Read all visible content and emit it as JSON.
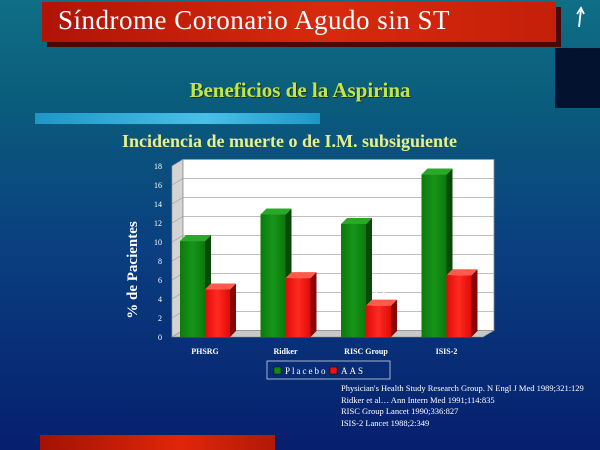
{
  "slide": {
    "title": "Síndrome Coronario Agudo sin ST",
    "title_arrow_icon": "arrow-up-icon",
    "subtitle": "Beneficios de la Aspirina"
  },
  "colors": {
    "title_bg": "#d72a0d",
    "subtitle": "#bfe64a",
    "chart_title": "#e8f08c",
    "placebo": "#138a13",
    "aas": "#ee1111"
  },
  "chart_data": {
    "type": "bar",
    "title": "Incidencia de muerte o de I.M. subsiguiente",
    "xlabel": "",
    "ylabel": "% de Pacientes",
    "ylim": [
      0,
      18
    ],
    "yticks": [
      0,
      2,
      4,
      6,
      8,
      10,
      12,
      14,
      16,
      18
    ],
    "grid": true,
    "legend_position": "bottom",
    "categories": [
      "PHSRG",
      "Ridker",
      "RISC Group",
      "ISIS-2"
    ],
    "series": [
      {
        "name": "Placebo",
        "values": [
          10.1,
          12.9,
          11.9,
          17.1
        ],
        "labels": [
          "10,1",
          "12,9",
          "11,9",
          "17,1"
        ]
      },
      {
        "name": "AAS",
        "values": [
          5,
          6.2,
          3.3,
          6.5
        ],
        "labels": [
          "5",
          "6,2",
          "3,3",
          "6,5"
        ]
      }
    ]
  },
  "references": [
    "Physician's Health Study Research Group. N Engl J Med 1989;321:129",
    "Ridker et al… Ann Intern Med 1991;114:835",
    "RISC Group   Lancet 1990;336:827",
    "ISIS-2   Lancet 1988;2:349"
  ]
}
